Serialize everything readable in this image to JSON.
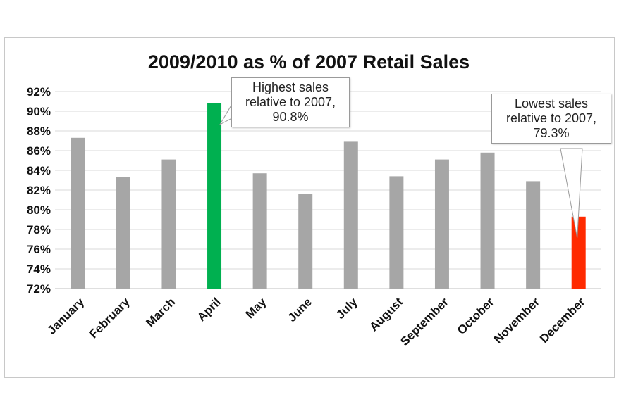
{
  "chart_data": {
    "type": "bar",
    "title": "2009/2010 as % of 2007 Retail Sales",
    "xlabel": "",
    "ylabel": "",
    "categories": [
      "January",
      "February",
      "March",
      "April",
      "May",
      "June",
      "July",
      "August",
      "September",
      "October",
      "November",
      "December"
    ],
    "values": [
      87.3,
      83.3,
      85.1,
      90.8,
      83.7,
      81.6,
      86.9,
      83.4,
      85.1,
      85.8,
      82.9,
      79.3
    ],
    "unit": "%",
    "ylim": [
      72,
      92
    ],
    "yticks": [
      "72%",
      "74%",
      "76%",
      "78%",
      "80%",
      "82%",
      "84%",
      "86%",
      "88%",
      "90%",
      "92%"
    ],
    "grid": true,
    "legend": "none",
    "colors": {
      "default_bar": "#a6a6a6",
      "highest_bar": "#00b050",
      "lowest_bar": "#ff2a00",
      "gridline": "#d9d9d9"
    },
    "highlights": {
      "highest_index": 3,
      "lowest_index": 11
    },
    "annotations": [
      {
        "target": "April",
        "lines": [
          "Highest sales",
          "relative to 2007,",
          "90.8%"
        ]
      },
      {
        "target": "December",
        "lines": [
          "Lowest sales",
          "relative to 2007,",
          "79.3%"
        ]
      }
    ]
  }
}
